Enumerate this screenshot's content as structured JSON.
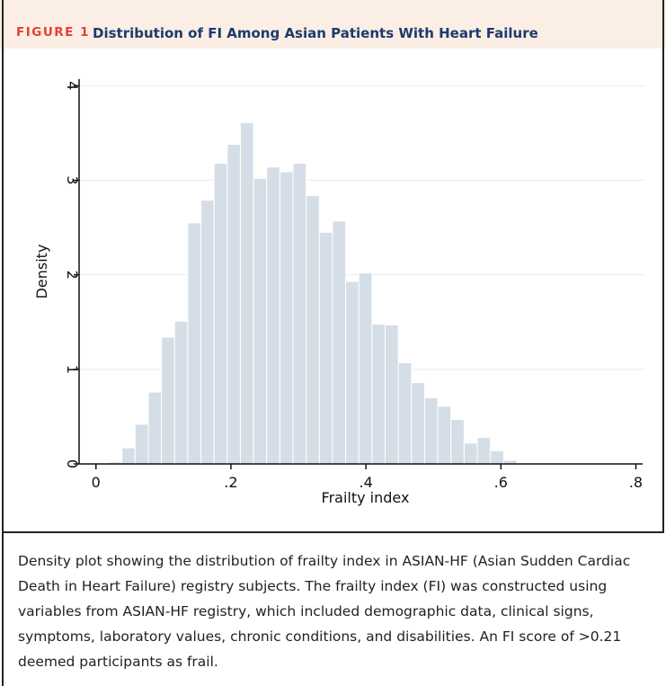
{
  "header": {
    "label": "FIGURE 1",
    "title": "Distribution of FI Among Asian Patients With Heart Failure"
  },
  "chart_data": {
    "type": "histogram",
    "x_label": "Frailty index",
    "y_label": "Density",
    "bins": [
      0.019,
      0.0385,
      0.058,
      0.0775,
      0.097,
      0.1165,
      0.136,
      0.1555,
      0.175,
      0.1945,
      0.214,
      0.2335,
      0.253,
      0.2725,
      0.292,
      0.3115,
      0.331,
      0.3505,
      0.37,
      0.3895,
      0.409,
      0.4285,
      0.448,
      0.4675,
      0.487,
      0.5065,
      0.526,
      0.5455,
      0.565,
      0.5845,
      0.604,
      0.6235,
      0.643,
      0.6625
    ],
    "values": [
      0.02,
      0.17,
      0.42,
      0.76,
      1.34,
      1.51,
      2.55,
      2.79,
      3.18,
      3.38,
      3.61,
      3.02,
      3.14,
      3.09,
      3.18,
      2.84,
      2.45,
      2.57,
      1.93,
      2.02,
      1.48,
      1.47,
      1.07,
      0.86,
      0.7,
      0.61,
      0.47,
      0.22,
      0.28,
      0.14,
      0.04,
      0.01,
      0.01
    ],
    "color": "#d5dee7",
    "xlim": [
      -0.025,
      0.81
    ],
    "ylim": [
      0,
      4.07
    ],
    "xticks": [
      0,
      {
        "value": 0.2,
        "label": ".2"
      },
      {
        "value": 0.4,
        "label": ".4"
      },
      {
        "value": 0.6,
        "label": ".6"
      },
      {
        "value": 0.8,
        "label": ".8"
      }
    ],
    "yticks": [
      0,
      1,
      2,
      3,
      4
    ],
    "grid": true
  },
  "caption": "Density plot showing the distribution of frailty index in ASIAN-HF (Asian Sudden Cardiac Death in Heart Failure) registry subjects. The frailty index (FI) was constructed using variables from ASIAN-HF registry, which included demographic data, clinical signs, symptoms, laboratory values, chronic conditions, and disabilities. An FI score of >0.21 deemed participants as frail."
}
